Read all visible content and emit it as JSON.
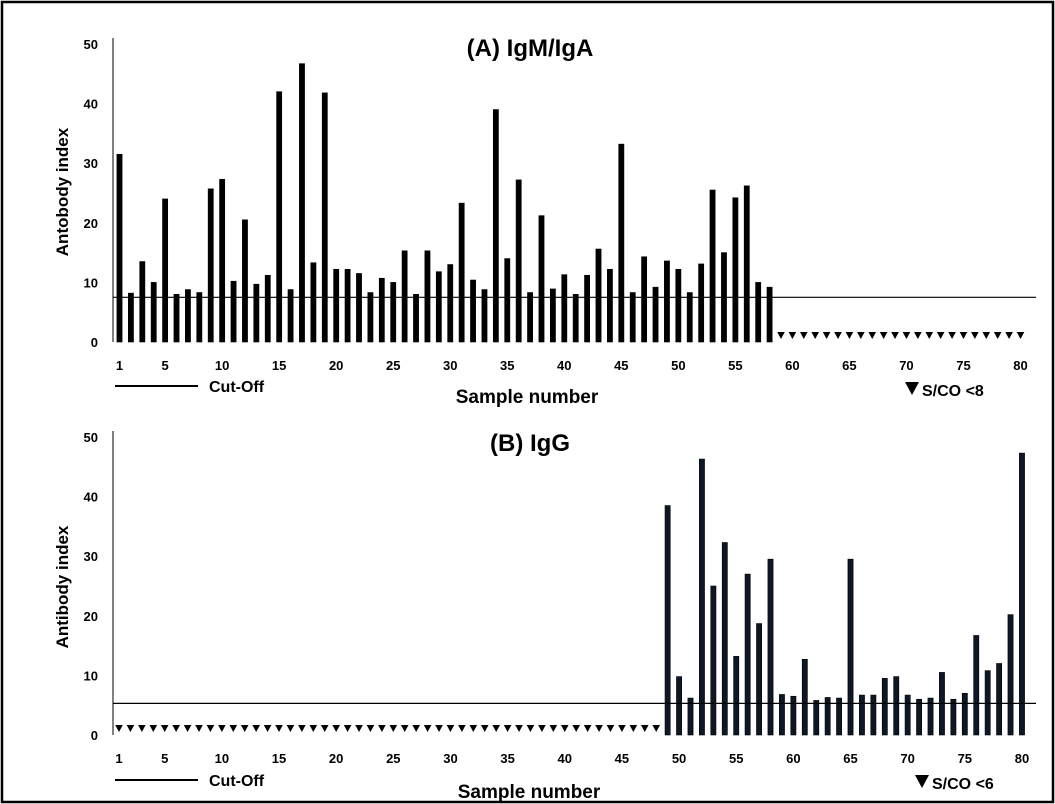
{
  "chart_data": [
    {
      "type": "bar",
      "title": "(A)  IgM/IgA",
      "ylabel": "Antobody index",
      "xlabel": "Sample number",
      "ylim": [
        0,
        50
      ],
      "yticks": [
        0,
        10,
        20,
        30,
        40,
        50
      ],
      "x": [
        1,
        2,
        3,
        4,
        5,
        6,
        7,
        8,
        9,
        10,
        11,
        12,
        13,
        14,
        15,
        16,
        17,
        18,
        19,
        20,
        21,
        22,
        23,
        24,
        25,
        26,
        27,
        28,
        29,
        30,
        31,
        32,
        33,
        34,
        35,
        36,
        37,
        38,
        39,
        40,
        41,
        42,
        43,
        44,
        45,
        46,
        47,
        48,
        49,
        50,
        51,
        52,
        53,
        54,
        55,
        56,
        57,
        58,
        59,
        60,
        61,
        62,
        63,
        64,
        65,
        66,
        67,
        68,
        69,
        70,
        71,
        72,
        73,
        74,
        75,
        76,
        77,
        78,
        79,
        80
      ],
      "xtick_labels": [
        "1",
        "5",
        "10",
        "15",
        "20",
        "25",
        "30",
        "35",
        "40",
        "45",
        "50",
        "55",
        "60",
        "65",
        "70",
        "75",
        "80"
      ],
      "values": [
        31.5,
        8.2,
        13.5,
        10,
        24,
        8,
        8.8,
        8.3,
        25.7,
        27.3,
        10.2,
        20.5,
        9.7,
        11.2,
        42,
        8.8,
        46.7,
        13.3,
        41.8,
        12.2,
        12.2,
        11.5,
        8.3,
        10.7,
        10,
        15.3,
        8,
        15.3,
        11.8,
        13,
        23.3,
        10.4,
        8.8,
        39,
        14,
        27.2,
        8.3,
        21.2,
        8.9,
        11.3,
        8,
        11.2,
        15.6,
        12.2,
        33.2,
        8.3,
        14.3,
        9.2,
        13.6,
        12.2,
        8.3,
        13.1,
        25.5,
        15,
        24.2,
        26.2,
        10,
        9.2,
        null,
        null,
        null,
        null,
        null,
        null,
        null,
        null,
        null,
        null,
        null,
        null,
        null,
        null,
        null,
        null,
        null,
        null,
        null,
        null,
        null,
        null
      ],
      "below_cutoff_samples": [
        59,
        60,
        61,
        62,
        63,
        64,
        65,
        66,
        67,
        68,
        69,
        70,
        71,
        72,
        73,
        74,
        75,
        76,
        77,
        78,
        79,
        80
      ],
      "cutoff": 7.5,
      "legend_cutoff": "Cut-Off",
      "legend_marker": "S/CO <8",
      "bar_color": "#000000"
    },
    {
      "type": "bar",
      "title": "(B)  IgG",
      "ylabel": "Antibody index",
      "xlabel": "Sample number",
      "ylim": [
        0,
        50
      ],
      "yticks": [
        0,
        10,
        20,
        30,
        40,
        50
      ],
      "x": [
        1,
        2,
        3,
        4,
        5,
        6,
        7,
        8,
        9,
        10,
        11,
        12,
        13,
        14,
        15,
        16,
        17,
        18,
        19,
        20,
        21,
        22,
        23,
        24,
        25,
        26,
        27,
        28,
        29,
        30,
        31,
        32,
        33,
        34,
        35,
        36,
        37,
        38,
        39,
        40,
        41,
        42,
        43,
        44,
        45,
        46,
        47,
        48,
        49,
        50,
        51,
        52,
        53,
        54,
        55,
        56,
        57,
        58,
        59,
        60,
        61,
        62,
        63,
        64,
        65,
        66,
        67,
        68,
        69,
        70,
        71,
        72,
        73,
        74,
        75,
        76,
        77,
        78,
        79,
        80
      ],
      "xtick_labels": [
        "1",
        "5",
        "10",
        "15",
        "20",
        "25",
        "30",
        "35",
        "40",
        "45",
        "50",
        "55",
        "60",
        "65",
        "70",
        "75",
        "80"
      ],
      "values": [
        null,
        null,
        null,
        null,
        null,
        null,
        null,
        null,
        null,
        null,
        null,
        null,
        null,
        null,
        null,
        null,
        null,
        null,
        null,
        null,
        null,
        null,
        null,
        null,
        null,
        null,
        null,
        null,
        null,
        null,
        null,
        null,
        null,
        null,
        null,
        null,
        null,
        null,
        null,
        null,
        null,
        null,
        null,
        null,
        null,
        null,
        null,
        null,
        38.5,
        9.8,
        6.2,
        46.3,
        25,
        32.3,
        13.2,
        27,
        18.7,
        29.5,
        6.8,
        6.5,
        12.7,
        5.8,
        6.3,
        6.2,
        29.5,
        6.7,
        6.7,
        9.5,
        9.8,
        6.7,
        6,
        6.2,
        10.5,
        6,
        7,
        16.7,
        10.8,
        12,
        20.2,
        47.3
      ],
      "below_cutoff_samples": [
        1,
        2,
        3,
        4,
        5,
        6,
        7,
        8,
        9,
        10,
        11,
        12,
        13,
        14,
        15,
        16,
        17,
        18,
        19,
        20,
        21,
        22,
        23,
        24,
        25,
        26,
        27,
        28,
        29,
        30,
        31,
        32,
        33,
        34,
        35,
        36,
        37,
        38,
        39,
        40,
        41,
        42,
        43,
        44,
        45,
        46,
        47,
        48
      ],
      "cutoff": 5.3,
      "legend_cutoff": "Cut-Off",
      "legend_marker": "S/CO <6",
      "bar_color": "#0d1726"
    }
  ]
}
